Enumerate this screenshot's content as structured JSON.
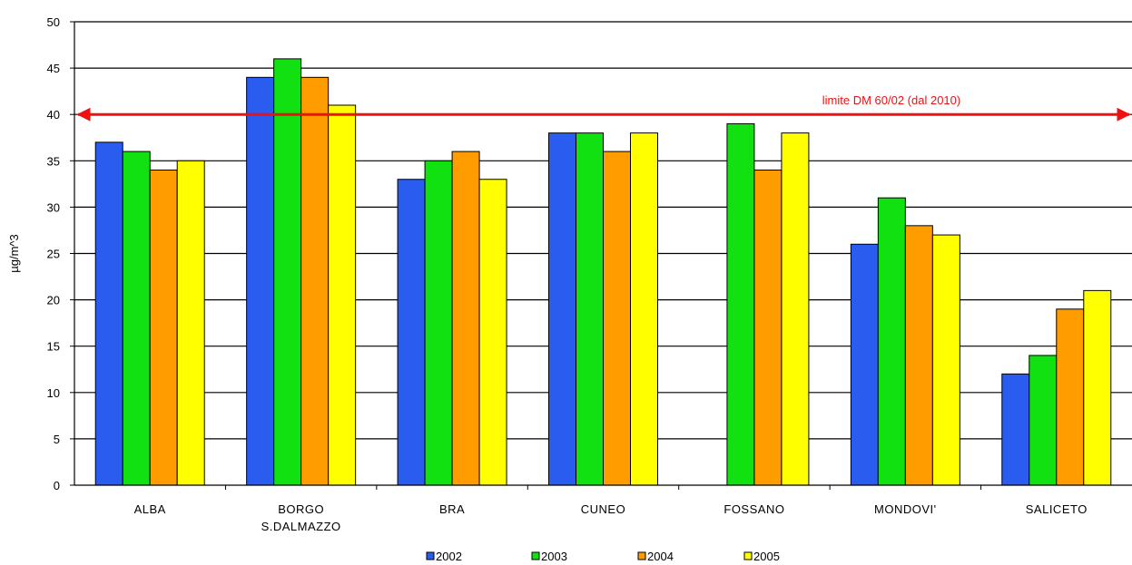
{
  "chart_data": {
    "type": "bar",
    "title": "",
    "xlabel": "",
    "ylabel": "µg/m^3",
    "ylim": [
      0,
      50
    ],
    "yticks": [
      0,
      5,
      10,
      15,
      20,
      25,
      30,
      35,
      40,
      45,
      50
    ],
    "grid": true,
    "legend_position": "bottom",
    "categories": [
      [
        "ALBA"
      ],
      [
        "BORGO",
        "S.DALMAZZO"
      ],
      [
        "BRA"
      ],
      [
        "CUNEO"
      ],
      [
        "FOSSANO"
      ],
      [
        "MONDOVI'"
      ],
      [
        "SALICETO"
      ]
    ],
    "series": [
      {
        "name": "2002",
        "color": "#2b5cf0",
        "values": [
          37,
          44,
          33,
          38,
          null,
          26,
          12
        ]
      },
      {
        "name": "2003",
        "color": "#11e011",
        "values": [
          36,
          46,
          35,
          38,
          39,
          31,
          14
        ]
      },
      {
        "name": "2004",
        "color": "#ff9c00",
        "values": [
          34,
          44,
          36,
          36,
          34,
          28,
          19
        ]
      },
      {
        "name": "2005",
        "color": "#ffff00",
        "values": [
          35,
          41,
          33,
          38,
          38,
          27,
          21
        ]
      }
    ],
    "reference_line": {
      "value": 40,
      "label": "limite DM 60/02 (dal 2010)",
      "color": "#ee1111"
    }
  }
}
